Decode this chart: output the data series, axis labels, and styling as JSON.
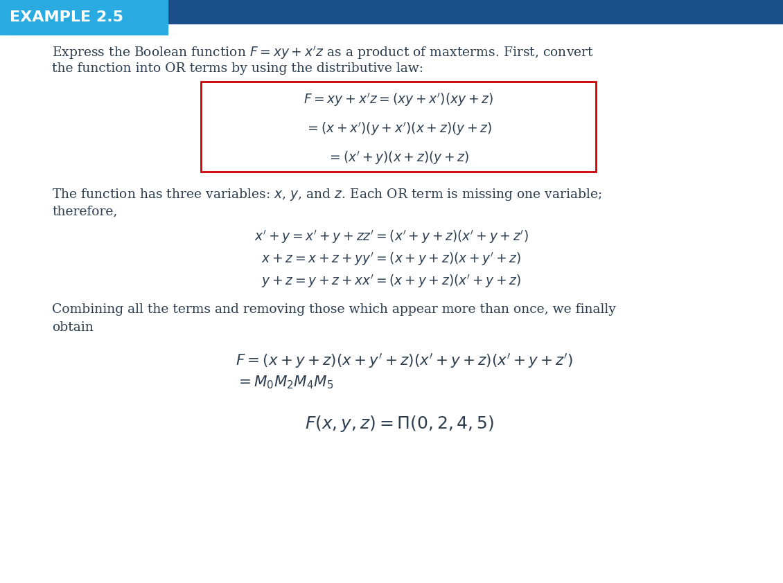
{
  "title": "EXAMPLE 2.5",
  "header_bg_color": "#29ABE2",
  "header_bar_color": "#1B4F8A",
  "header_text_color": "#FFFFFF",
  "body_text_color": "#2C3E50",
  "math_text_color": "#2C3E50",
  "box_border_color": "#CC0000",
  "box_bg_color": "#FFFFFF",
  "background_color": "#FFFFFF",
  "para1_line1": "Express the Boolean function $F = xy + x'z$ as a product of maxterms. First, convert",
  "para1_line2": "the function into OR terms by using the distributive law:",
  "box_line1": "$F = xy + x'z = (xy + x')(xy + z)$",
  "box_line2": "$= (x + x')(y + x')(x + z)(y + z)$",
  "box_line3": "$= (x' + y)(x + z)(y + z)$",
  "para2_line1": "The function has three variables: $x$, $y$, and $z$. Each OR term is missing one variable;",
  "para2_line2": "therefore,",
  "eq1": "$x' + y = x' + y + zz' = (x' + y + z)(x' + y + z')$",
  "eq2": "$x + z = x + z + yy' = (x + y + z)(x + y' + z)$",
  "eq3": "$y + z = y + z + xx' = (x + y + z)(x' + y + z)$",
  "para3_line1": "Combining all the terms and removing those which appear more than once, we finally",
  "para3_line2": "obtain",
  "final_eq1": "$F = (x + y + z)(x + y' + z)(x' + y + z)(x' + y + z')$",
  "final_eq2": "$= M_0M_2M_4M_5$",
  "final_eq3": "$F(x, y, z) = \\Pi(0, 2, 4, 5)$",
  "body_fontsize": 13.5,
  "math_fontsize": 13.5,
  "final_math_fontsize": 15.5,
  "header_fontsize": 16
}
